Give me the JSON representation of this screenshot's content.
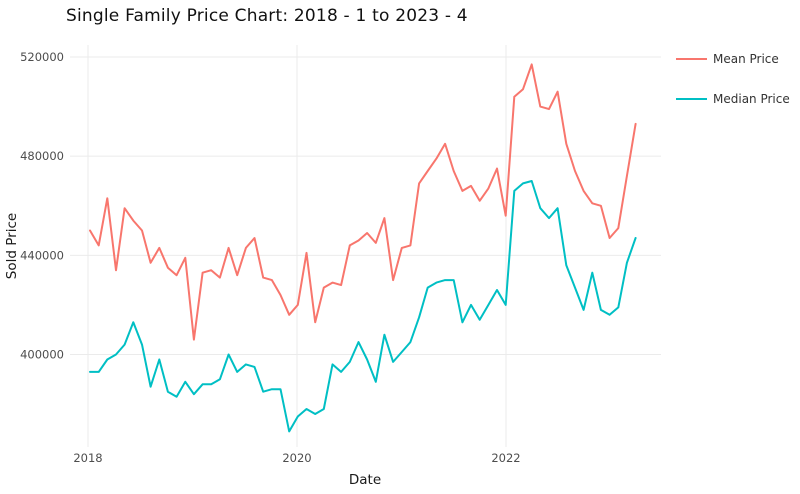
{
  "title": "Single Family Price Chart: 2018 - 1 to 2023 - 4",
  "x_axis": {
    "label": "Date",
    "ticks": [
      "2018",
      "2020",
      "2022"
    ]
  },
  "y_axis": {
    "label": "Sold Price",
    "ticks": [
      "400000",
      "440000",
      "480000",
      "520000"
    ]
  },
  "legend": [
    {
      "label": "Mean Price",
      "color": "#F8766D"
    },
    {
      "label": "Median Price",
      "color": "#00BFC4"
    }
  ],
  "chart_data": {
    "type": "line",
    "title": "Single Family Price Chart: 2018 - 1 to 2023 - 4",
    "xlabel": "Date",
    "ylabel": "Sold Price",
    "x_start": "2018-01",
    "x_end": "2023-04",
    "x_frequency": "monthly",
    "x_tick_years": [
      2018,
      2020,
      2022
    ],
    "y_ticks": [
      400000,
      440000,
      480000,
      520000
    ],
    "ylim": [
      362000,
      524000
    ],
    "grid": true,
    "legend_position": "top-right",
    "series": [
      {
        "name": "Mean Price",
        "color": "#F8766D",
        "values": [
          450000,
          444000,
          463000,
          434000,
          459000,
          454000,
          450000,
          437000,
          443000,
          435000,
          432000,
          439000,
          406000,
          433000,
          434000,
          431000,
          443000,
          432000,
          443000,
          447000,
          431000,
          430000,
          424000,
          416000,
          420000,
          441000,
          413000,
          427000,
          429000,
          428000,
          444000,
          446000,
          449000,
          445000,
          455000,
          430000,
          443000,
          444000,
          469000,
          474000,
          479000,
          485000,
          474000,
          466000,
          468000,
          462000,
          467000,
          475000,
          456000,
          504000,
          507000,
          517000,
          500000,
          499000,
          506000,
          485000,
          474000,
          466000,
          461000,
          460000,
          447000,
          451000,
          472000,
          493000
        ]
      },
      {
        "name": "Median Price",
        "color": "#00BFC4",
        "values": [
          393000,
          393000,
          398000,
          400000,
          404000,
          413000,
          404000,
          387000,
          398000,
          385000,
          383000,
          389000,
          384000,
          388000,
          388000,
          390000,
          400000,
          393000,
          396000,
          395000,
          385000,
          386000,
          386000,
          369000,
          375000,
          378000,
          376000,
          378000,
          396000,
          393000,
          397000,
          405000,
          398000,
          389000,
          408000,
          397000,
          401000,
          405000,
          415000,
          427000,
          429000,
          430000,
          430000,
          413000,
          420000,
          414000,
          420000,
          426000,
          420000,
          466000,
          469000,
          470000,
          459000,
          455000,
          459000,
          436000,
          427000,
          418000,
          433000,
          418000,
          416000,
          419000,
          437000,
          447000
        ]
      }
    ]
  }
}
